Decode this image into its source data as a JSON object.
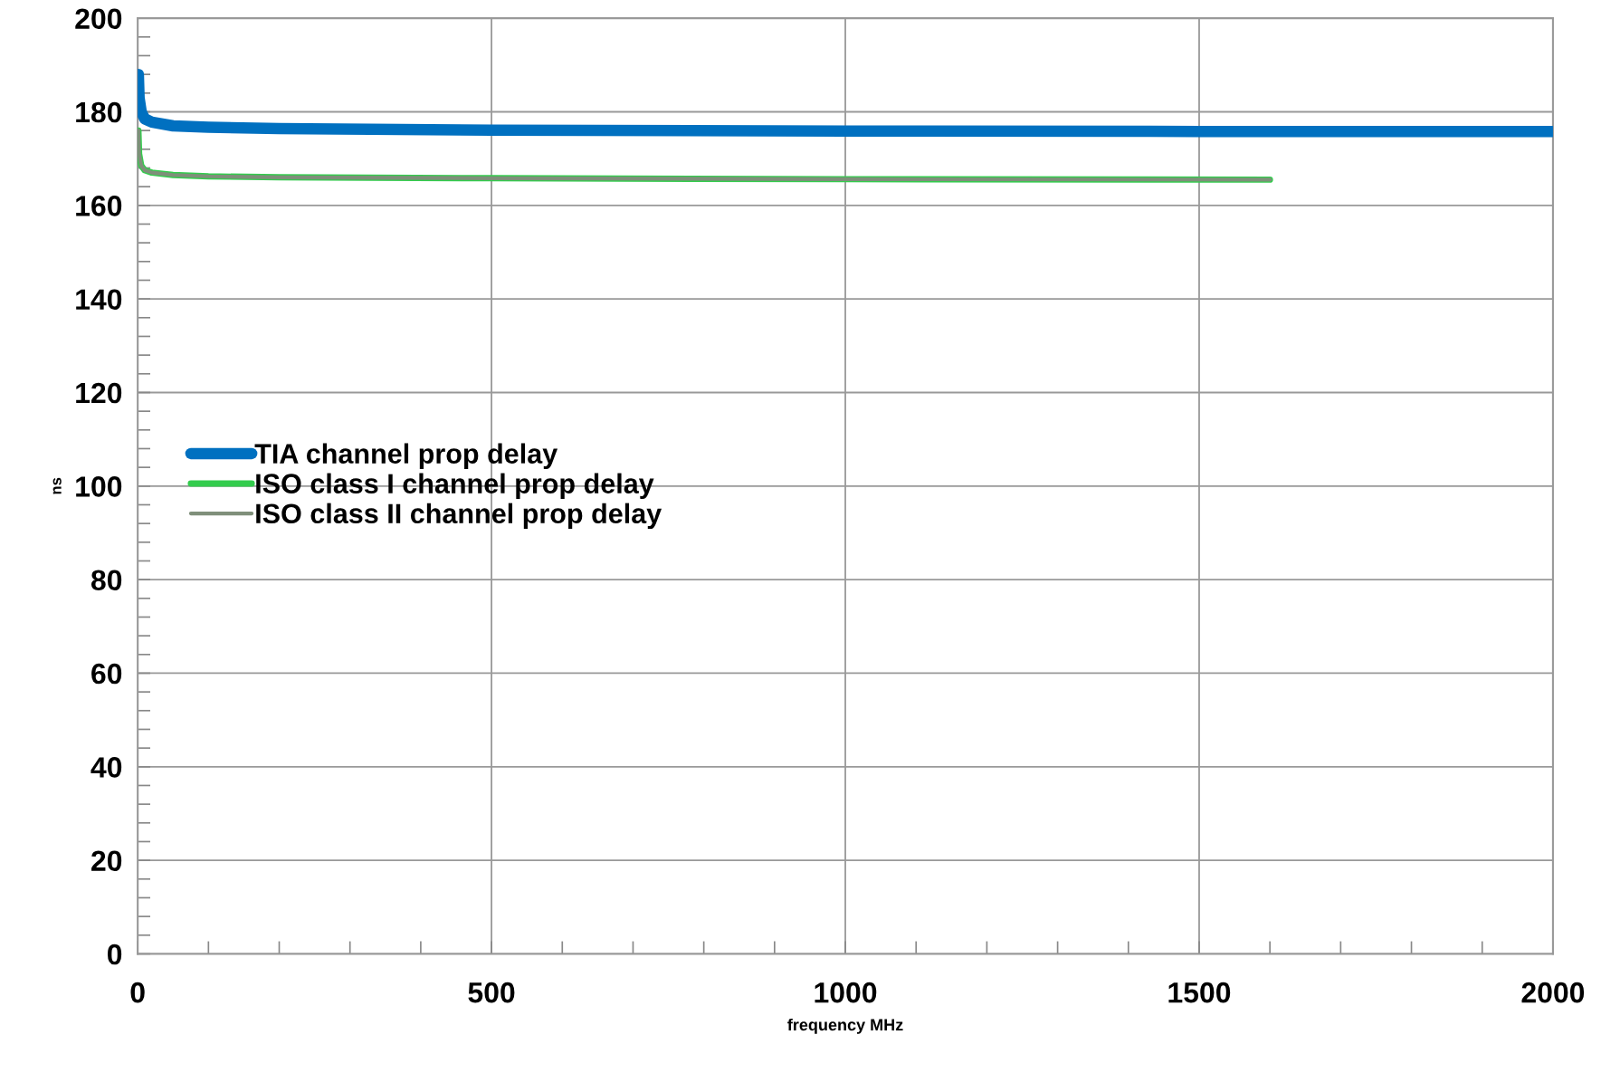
{
  "chart_data": {
    "type": "line",
    "xlabel": "frequency MHz",
    "ylabel": "ns",
    "xlim": [
      0,
      2000
    ],
    "ylim": [
      0,
      200
    ],
    "xticks": [
      0,
      {
        "value": 100,
        "label": null
      },
      {
        "value": 200,
        "label": null
      },
      {
        "value": 300,
        "label": null
      },
      {
        "value": 400,
        "label": null
      },
      500,
      {
        "value": 600,
        "label": null
      },
      {
        "value": 700,
        "label": null
      },
      {
        "value": 800,
        "label": null
      },
      {
        "value": 900,
        "label": null
      },
      1000,
      {
        "value": 1100,
        "label": null
      },
      {
        "value": 1200,
        "label": null
      },
      {
        "value": 1300,
        "label": null
      },
      {
        "value": 1400,
        "label": null
      },
      1500,
      {
        "value": 1600,
        "label": null
      },
      {
        "value": 1700,
        "label": null
      },
      {
        "value": 1800,
        "label": null
      },
      {
        "value": 1900,
        "label": null
      },
      2000
    ],
    "yticks": [
      0,
      {
        "value": 4,
        "label": null
      },
      {
        "value": 8,
        "label": null
      },
      {
        "value": 12,
        "label": null
      },
      {
        "value": 16,
        "label": null
      },
      20,
      {
        "value": 24,
        "label": null
      },
      {
        "value": 28,
        "label": null
      },
      {
        "value": 32,
        "label": null
      },
      {
        "value": 36,
        "label": null
      },
      40,
      {
        "value": 44,
        "label": null
      },
      {
        "value": 48,
        "label": null
      },
      {
        "value": 52,
        "label": null
      },
      {
        "value": 56,
        "label": null
      },
      60,
      {
        "value": 64,
        "label": null
      },
      {
        "value": 68,
        "label": null
      },
      {
        "value": 72,
        "label": null
      },
      {
        "value": 76,
        "label": null
      },
      80,
      {
        "value": 84,
        "label": null
      },
      {
        "value": 88,
        "label": null
      },
      {
        "value": 92,
        "label": null
      },
      {
        "value": 96,
        "label": null
      },
      100,
      {
        "value": 104,
        "label": null
      },
      {
        "value": 108,
        "label": null
      },
      {
        "value": 112,
        "label": null
      },
      {
        "value": 116,
        "label": null
      },
      120,
      {
        "value": 124,
        "label": null
      },
      {
        "value": 128,
        "label": null
      },
      {
        "value": 132,
        "label": null
      },
      {
        "value": 136,
        "label": null
      },
      140,
      {
        "value": 144,
        "label": null
      },
      {
        "value": 148,
        "label": null
      },
      {
        "value": 152,
        "label": null
      },
      {
        "value": 156,
        "label": null
      },
      160,
      {
        "value": 164,
        "label": null
      },
      {
        "value": 168,
        "label": null
      },
      {
        "value": 172,
        "label": null
      },
      {
        "value": 176,
        "label": null
      },
      180,
      {
        "value": 184,
        "label": null
      },
      {
        "value": 188,
        "label": null
      },
      {
        "value": 192,
        "label": null
      },
      {
        "value": 196,
        "label": null
      },
      200
    ],
    "grid": true,
    "legend": "left",
    "marker": "none",
    "line_style": "solid",
    "series": [
      {
        "name": "TIA channel prop delay",
        "color": "#0070c0",
        "x": [
          1,
          2,
          5,
          10,
          20,
          50,
          100,
          200,
          500,
          1000,
          1500,
          2000
        ],
        "values": [
          188,
          183,
          180,
          178.5,
          177.8,
          177,
          176.7,
          176.4,
          176.1,
          175.9,
          175.8,
          175.8
        ]
      },
      {
        "name": "ISO class I channel prop delay",
        "color": "#33cc4d",
        "x": [
          1,
          2,
          5,
          10,
          20,
          50,
          100,
          200,
          500,
          1000,
          1600
        ],
        "values": [
          176,
          171,
          168.5,
          167.5,
          167,
          166.5,
          166.2,
          166,
          165.8,
          165.6,
          165.5
        ]
      },
      {
        "name": "ISO class II channel prop delay",
        "color": "#7f8f7a",
        "x": [
          1,
          2,
          5,
          10,
          20,
          50,
          100,
          200,
          500,
          1000,
          1600
        ],
        "values": [
          176,
          171,
          168.5,
          167.5,
          167,
          166.5,
          166.2,
          166,
          165.8,
          165.6,
          165.5
        ]
      }
    ]
  }
}
